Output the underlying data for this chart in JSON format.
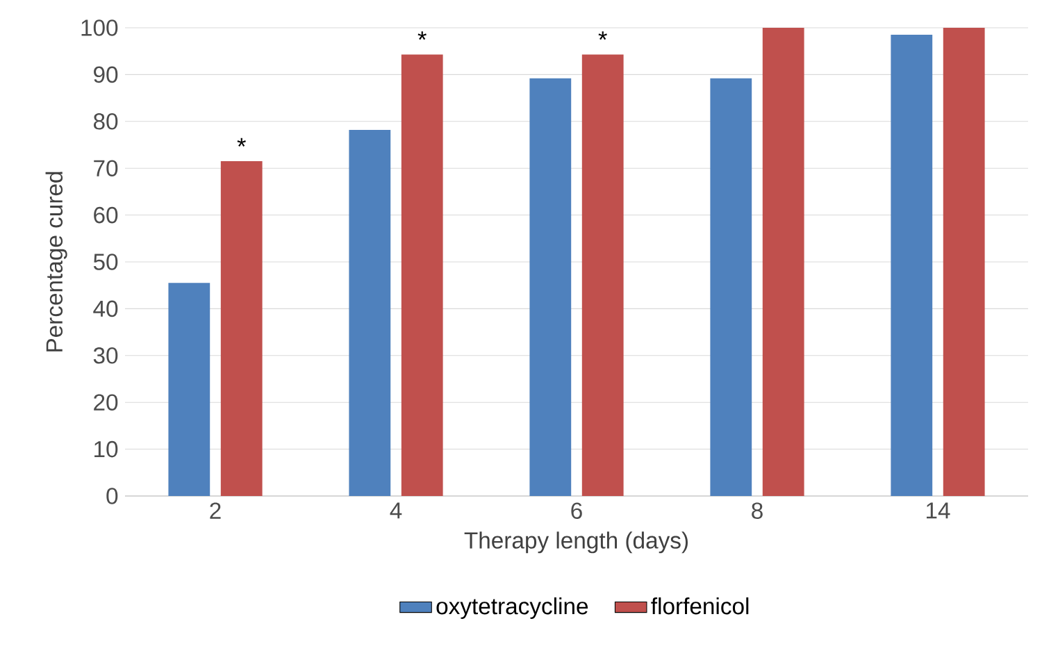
{
  "chart_data": {
    "type": "bar",
    "xlabel": "Therapy length (days)",
    "ylabel": "Percentage cured",
    "categories": [
      "2",
      "4",
      "6",
      "8",
      "14"
    ],
    "series": [
      {
        "name": "oxytetracycline",
        "color": "#4f81bd",
        "values": [
          45.5,
          78.2,
          89.2,
          89.2,
          98.5
        ]
      },
      {
        "name": "florfenicol",
        "color": "#c0504d",
        "values": [
          71.5,
          94.3,
          94.3,
          100,
          100
        ]
      }
    ],
    "ylim": [
      0,
      100
    ],
    "yticks": [
      0,
      10,
      20,
      30,
      40,
      50,
      60,
      70,
      80,
      90,
      100
    ],
    "grid": "y",
    "legend": "bottom",
    "annotations": [
      {
        "text": "*",
        "x": "2",
        "y": 71.5
      },
      {
        "text": "*",
        "x": "4",
        "y": 94.3
      },
      {
        "text": "*",
        "x": "6",
        "y": 94.3
      }
    ]
  }
}
